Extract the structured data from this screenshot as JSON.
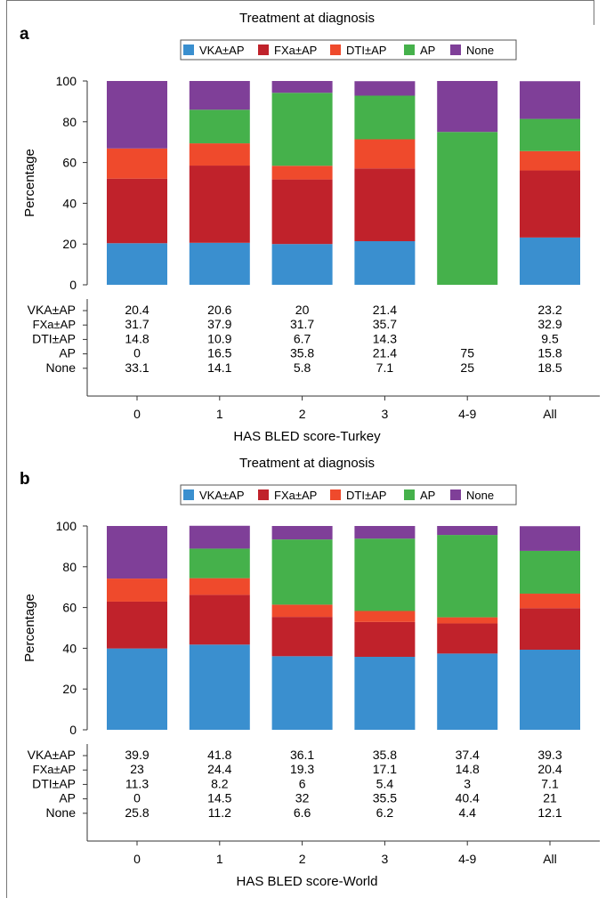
{
  "chart_data": [
    {
      "type": "bar",
      "stacked": true,
      "panel": "a",
      "title": "Treatment at diagnosis",
      "xlabel": "HAS BLED score-Turkey",
      "ylabel": "Percentage",
      "ylim": [
        0,
        100
      ],
      "yticks": [
        "0",
        "20",
        "40",
        "60",
        "80",
        "100"
      ],
      "categories": [
        "0",
        "1",
        "2",
        "3",
        "4-9",
        "All"
      ],
      "series": [
        {
          "name": "VKA±AP",
          "color": "#3a8fcf",
          "values": [
            20.4,
            20.6,
            20,
            21.4,
            null,
            23.2
          ],
          "labels": [
            "20.4",
            "20.6",
            "20",
            "21.4",
            "",
            "23.2"
          ]
        },
        {
          "name": "FXa±AP",
          "color": "#c0222b",
          "values": [
            31.7,
            37.9,
            31.7,
            35.7,
            null,
            32.9
          ],
          "labels": [
            "31.7",
            "37.9",
            "31.7",
            "35.7",
            "",
            "32.9"
          ]
        },
        {
          "name": "DTI±AP",
          "color": "#ef4a2c",
          "values": [
            14.8,
            10.9,
            6.7,
            14.3,
            null,
            9.5
          ],
          "labels": [
            "14.8",
            "10.9",
            "6.7",
            "14.3",
            "",
            "9.5"
          ]
        },
        {
          "name": "AP",
          "color": "#45b14b",
          "values": [
            0,
            16.5,
            35.8,
            21.4,
            75,
            15.8
          ],
          "labels": [
            "0",
            "16.5",
            "35.8",
            "21.4",
            "75",
            "15.8"
          ]
        },
        {
          "name": "None",
          "color": "#7f3f98",
          "values": [
            33.1,
            14.1,
            5.8,
            7.1,
            25,
            18.5
          ],
          "labels": [
            "33.1",
            "14.1",
            "5.8",
            "7.1",
            "25",
            "18.5"
          ]
        }
      ],
      "grid": false,
      "legend": "top"
    },
    {
      "type": "bar",
      "stacked": true,
      "panel": "b",
      "title": "Treatment at diagnosis",
      "xlabel": "HAS BLED score-World",
      "ylabel": "Percentage",
      "ylim": [
        0,
        100
      ],
      "yticks": [
        "0",
        "20",
        "40",
        "60",
        "80",
        "100"
      ],
      "categories": [
        "0",
        "1",
        "2",
        "3",
        "4-9",
        "All"
      ],
      "series": [
        {
          "name": "VKA±AP",
          "color": "#3a8fcf",
          "values": [
            39.9,
            41.8,
            36.1,
            35.8,
            37.4,
            39.3
          ],
          "labels": [
            "39.9",
            "41.8",
            "36.1",
            "35.8",
            "37.4",
            "39.3"
          ]
        },
        {
          "name": "FXa±AP",
          "color": "#c0222b",
          "values": [
            23,
            24.4,
            19.3,
            17.1,
            14.8,
            20.4
          ],
          "labels": [
            "23",
            "24.4",
            "19.3",
            "17.1",
            "14.8",
            "20.4"
          ]
        },
        {
          "name": "DTI±AP",
          "color": "#ef4a2c",
          "values": [
            11.3,
            8.2,
            6,
            5.4,
            3,
            7.1
          ],
          "labels": [
            "11.3",
            "8.2",
            "6",
            "5.4",
            "3",
            "7.1"
          ]
        },
        {
          "name": "AP",
          "color": "#45b14b",
          "values": [
            0,
            14.5,
            32,
            35.5,
            40.4,
            21
          ],
          "labels": [
            "0",
            "14.5",
            "32",
            "35.5",
            "40.4",
            "21"
          ]
        },
        {
          "name": "None",
          "color": "#7f3f98",
          "values": [
            25.8,
            11.2,
            6.6,
            6.2,
            4.4,
            12.1
          ],
          "labels": [
            "25.8",
            "11.2",
            "6.6",
            "6.2",
            "4.4",
            "12.1"
          ]
        }
      ],
      "grid": false,
      "legend": "top"
    }
  ]
}
